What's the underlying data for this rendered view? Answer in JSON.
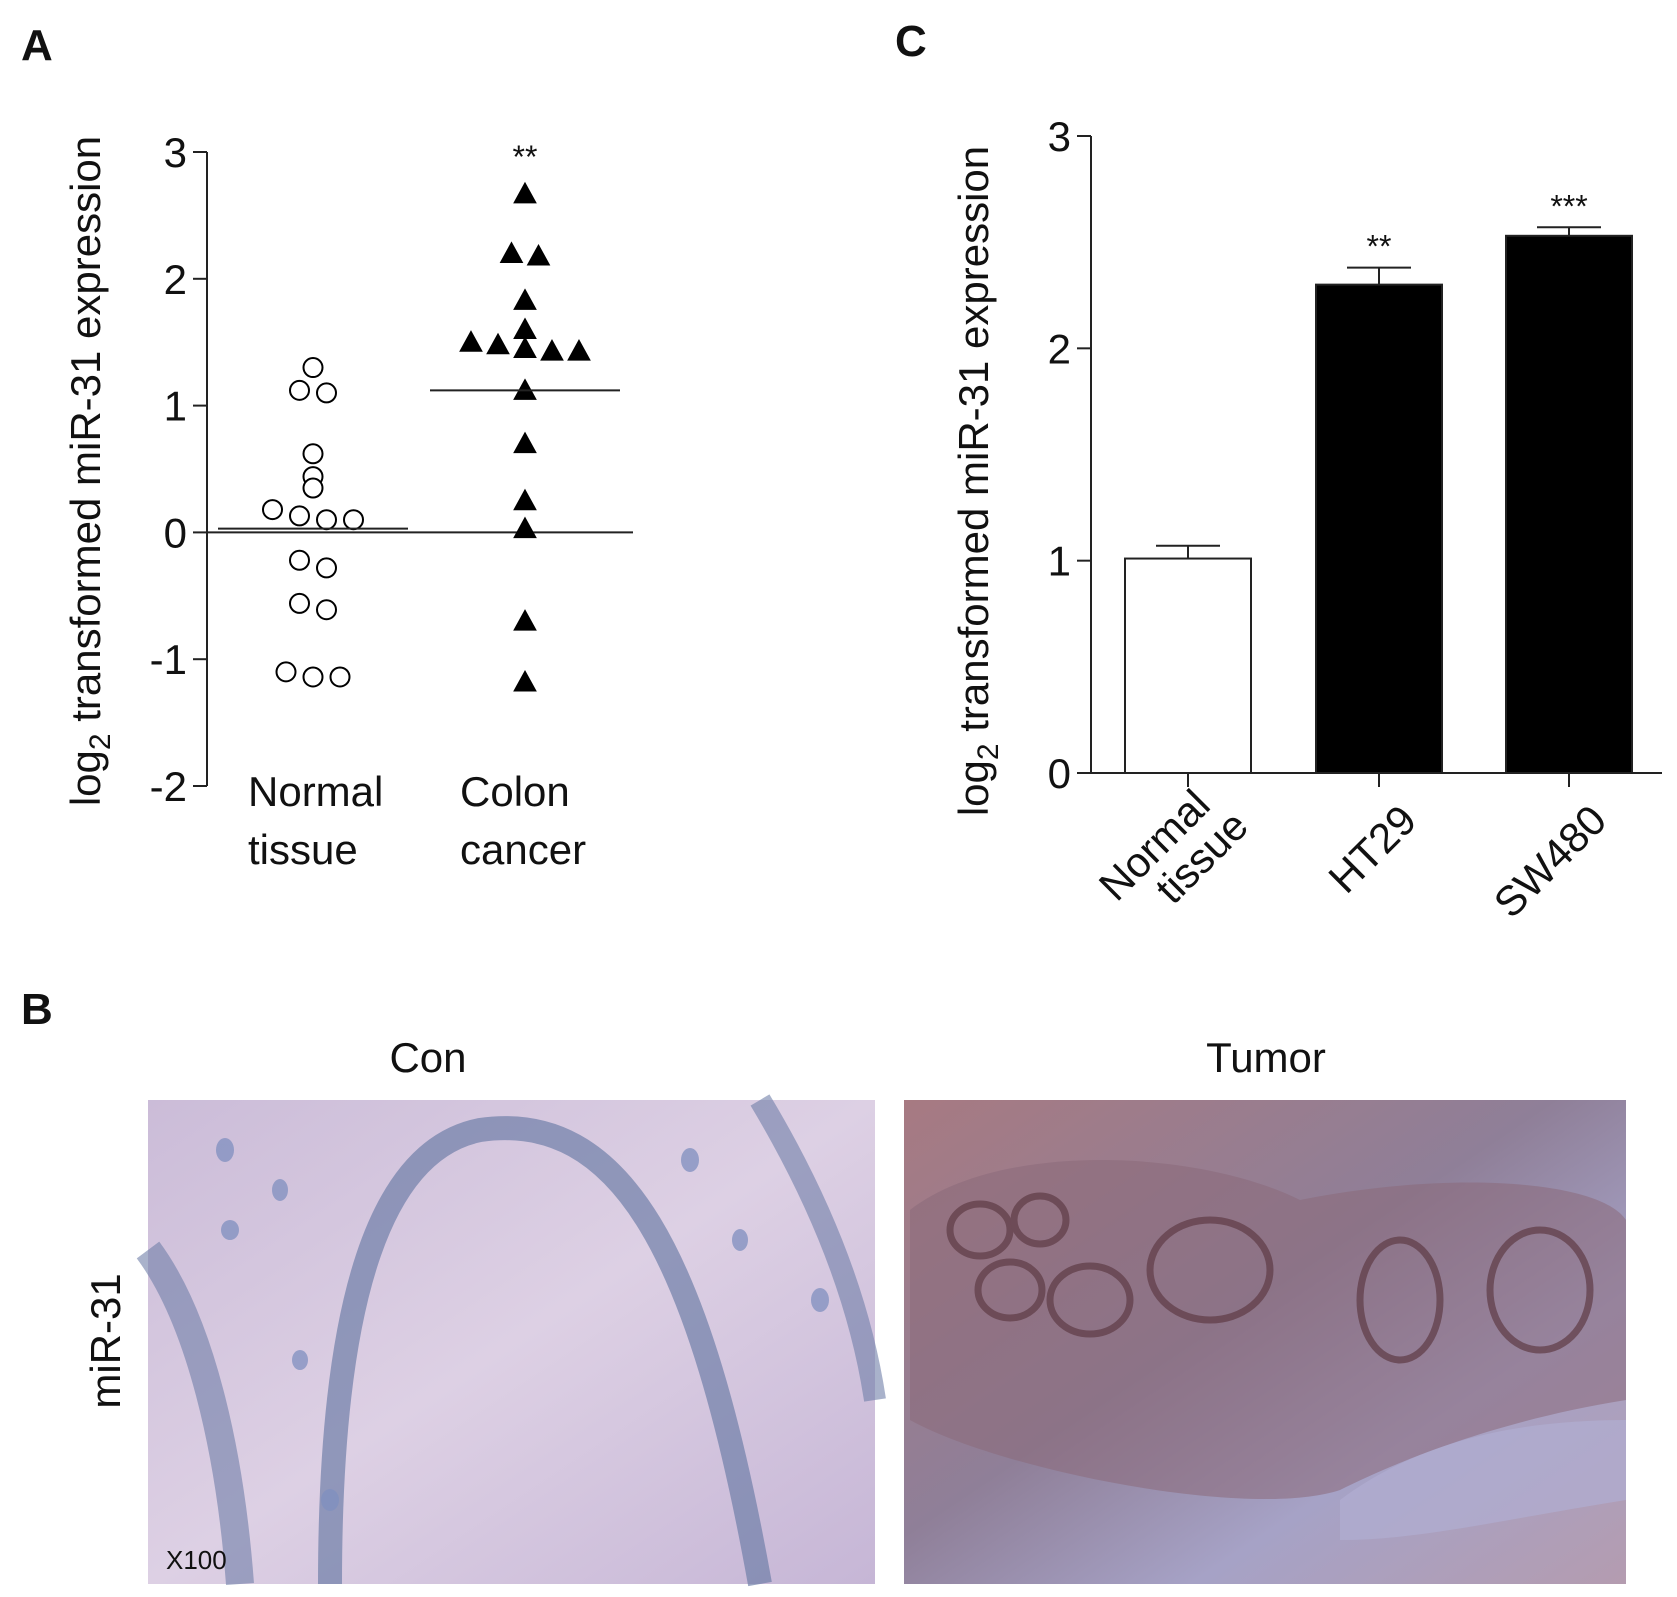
{
  "chart_data": [
    {
      "type": "strip",
      "panel_label": "A",
      "ylabel": [
        "log",
        "2",
        " transformed miR-31 expression"
      ],
      "ylim": [
        -2,
        3
      ],
      "yticks": [
        -2,
        -1,
        0,
        1,
        2,
        3
      ],
      "reference_line": 0,
      "categories": [
        "Normal tissue",
        "Colon cancer"
      ],
      "series": [
        {
          "marker": "circle",
          "color": "#000000",
          "fill": "#ffffff",
          "values": [
            1.3,
            1.1,
            1.12,
            0.62,
            0.44,
            0.35,
            0.18,
            0.1,
            0.1,
            0.13,
            -0.22,
            -0.28,
            -0.56,
            -0.61,
            -1.1,
            -1.14,
            -1.14
          ],
          "mean": 0.03
        },
        {
          "marker": "triangle",
          "color": "#000000",
          "fill": "#000000",
          "values": [
            2.67,
            2.18,
            2.2,
            1.83,
            1.6,
            1.48,
            1.43,
            1.43,
            1.45,
            1.5,
            1.12,
            0.7,
            0.25,
            0.03,
            -0.7,
            -1.18
          ],
          "mean": 1.12
        }
      ],
      "annotations": [
        null,
        "**"
      ]
    },
    {
      "type": "bar",
      "panel_label": "C",
      "ylabel": [
        "log",
        "2",
        " transformed miR-31 expression"
      ],
      "ylim": [
        0,
        3
      ],
      "yticks": [
        0,
        1,
        2,
        3
      ],
      "categories": [
        "Normal tissue",
        "HT29",
        "SW480"
      ],
      "values": [
        1.01,
        2.3,
        2.53
      ],
      "errors": [
        0.06,
        0.08,
        0.04
      ],
      "colors": [
        "#ffffff",
        "#000000",
        "#000000"
      ],
      "annotations": [
        null,
        "**",
        "***"
      ]
    }
  ],
  "panel_b": {
    "panel_label": "B",
    "columns": [
      "Con",
      "Tumor"
    ],
    "row_label": "miR-31",
    "magnification": "X100"
  }
}
